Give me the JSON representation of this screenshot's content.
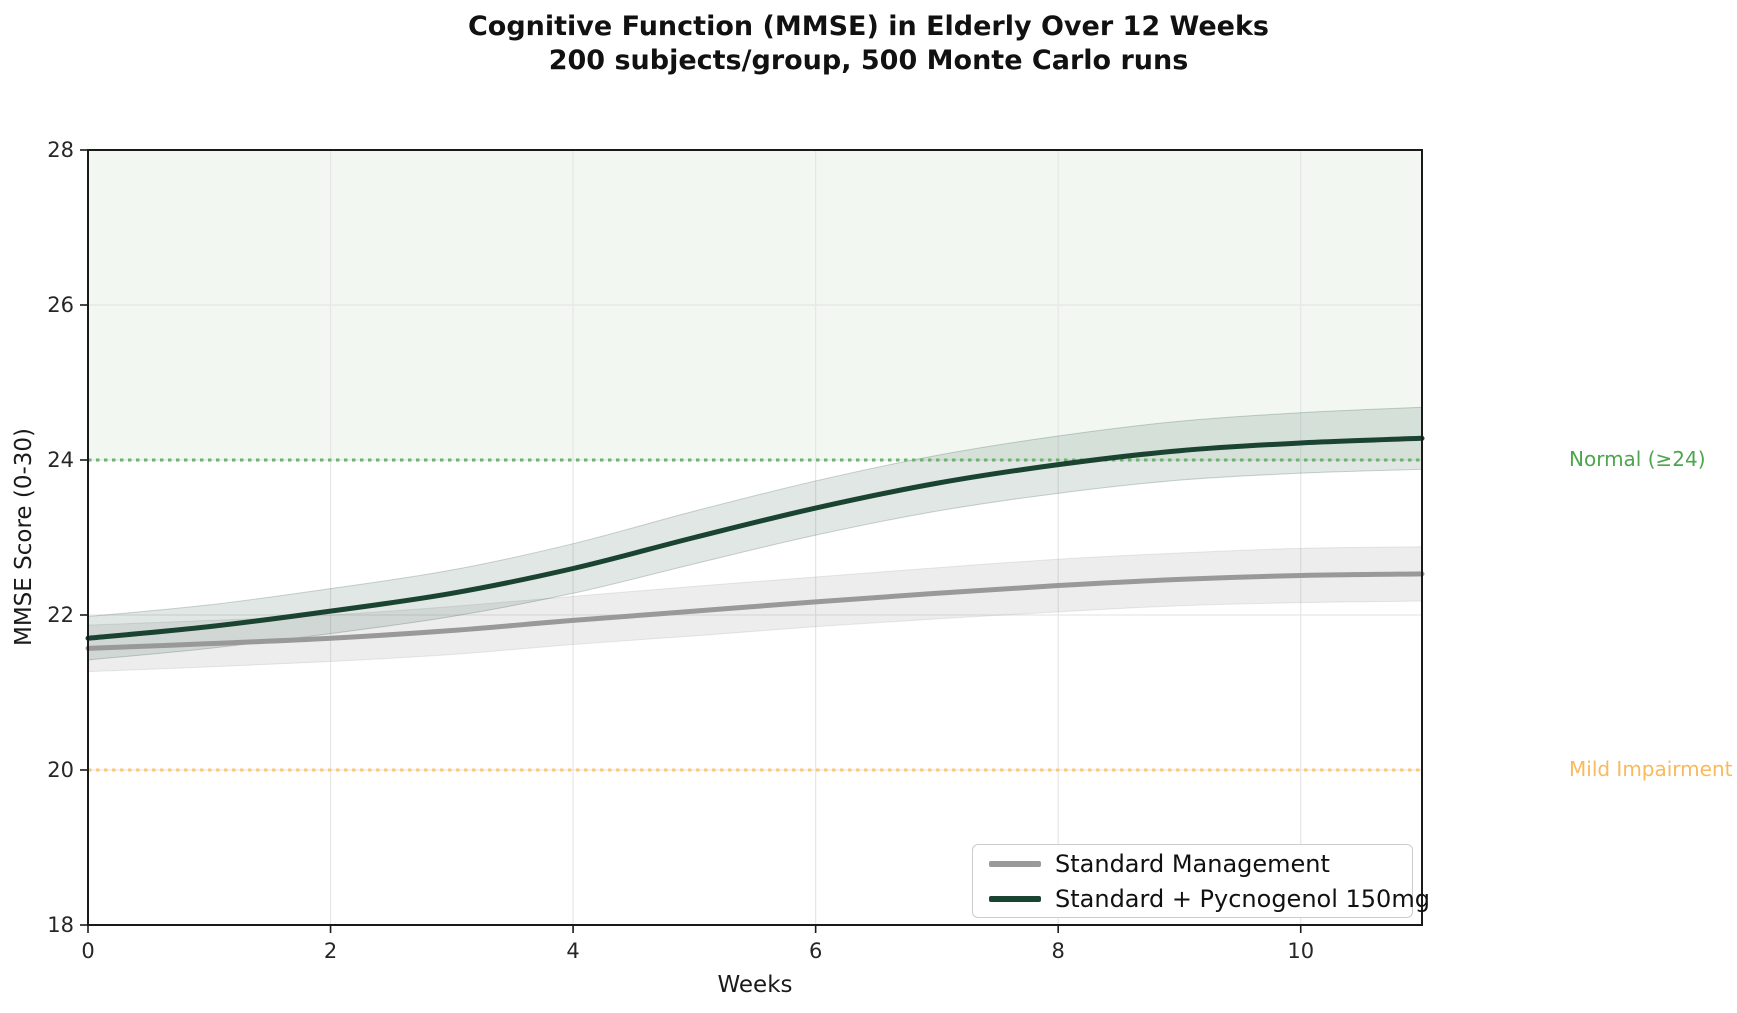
{
  "chart_data": {
    "type": "line",
    "title": "Cognitive Function (MMSE) in Elderly Over 12 Weeks",
    "subtitle": "200 subjects/group, 500 Monte Carlo runs",
    "xlabel": "Weeks",
    "ylabel": "MMSE Score (0-30)",
    "xlim": [
      0,
      11
    ],
    "ylim": [
      18,
      28
    ],
    "xticks": [
      0,
      2,
      4,
      6,
      8,
      10
    ],
    "yticks": [
      18,
      20,
      22,
      24,
      26,
      28
    ],
    "grid": true,
    "legend_position": "lower right",
    "x": [
      0,
      1,
      2,
      3,
      4,
      5,
      6,
      7,
      8,
      9,
      10,
      11
    ],
    "series": [
      {
        "name": "Standard Management",
        "color": "#999999",
        "band_color": "#999999",
        "band_opacity": 0.18,
        "values": [
          21.57,
          21.63,
          21.7,
          21.8,
          21.93,
          22.05,
          22.17,
          22.28,
          22.38,
          22.46,
          22.51,
          22.53
        ],
        "band_halfwidth": [
          0.3,
          0.3,
          0.3,
          0.31,
          0.31,
          0.32,
          0.32,
          0.33,
          0.34,
          0.34,
          0.35,
          0.35
        ]
      },
      {
        "name": "Standard + Pycnogenol 150mg",
        "color": "#1b4332",
        "band_color": "#1b4332",
        "band_opacity": 0.13,
        "values": [
          21.7,
          21.85,
          22.05,
          22.28,
          22.6,
          23.0,
          23.38,
          23.7,
          23.94,
          24.12,
          24.22,
          24.28
        ],
        "band_halfwidth": [
          0.28,
          0.28,
          0.29,
          0.3,
          0.32,
          0.34,
          0.35,
          0.36,
          0.37,
          0.38,
          0.39,
          0.4
        ]
      }
    ],
    "reference_lines": [
      {
        "y": 24,
        "label": "Normal (≥24)",
        "line_color": "#6db36d",
        "label_color": "#4ca64c"
      },
      {
        "y": 20,
        "label": "Mild Impairment",
        "line_color": "#fbc87a",
        "label_color": "#f9b95c"
      }
    ],
    "normal_zone": {
      "from": 24,
      "to": 28,
      "color": "#f2f7f2"
    },
    "colors": {
      "grid": "#e6e6e6",
      "spine": "#1a1a1a",
      "tick_text": "#262626"
    }
  }
}
